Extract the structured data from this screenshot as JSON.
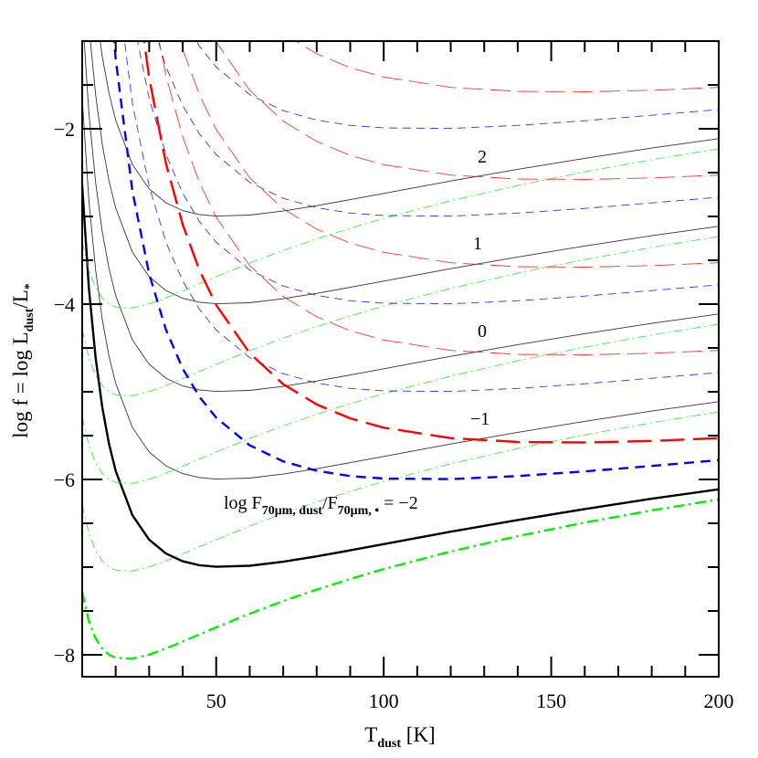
{
  "chart_data": {
    "type": "line",
    "xlabel": {
      "main": "T",
      "sub": "dust",
      "rest": " [K]"
    },
    "ylabel": {
      "main": "log f  =  log L",
      "sub1": "dust",
      "mid": "/L",
      "sub2": "*"
    },
    "xlim": [
      10,
      200
    ],
    "ylim": [
      -8.25,
      -1
    ],
    "xticks": [
      50,
      100,
      150,
      200
    ],
    "yticks": [
      -2,
      -4,
      -6,
      -8
    ],
    "x_minor_step": 10,
    "y_minor_step": 0.5,
    "grid": false,
    "annotation": {
      "prefix": "log F",
      "sub1": "70μm, dust",
      "mid": "/F",
      "sub2": "70μm, •",
      "eq": " =   −2"
    },
    "curve_labels": [
      "2",
      "1",
      "0",
      "−1"
    ],
    "families": [
      {
        "color": "#000000",
        "style": "solid",
        "T": [
          10,
          12,
          14,
          16,
          18,
          20,
          25,
          30,
          35,
          40,
          45,
          50,
          60,
          70,
          80,
          90,
          100,
          120,
          140,
          160,
          180,
          200
        ],
        "shape": [
          4.355,
          3.184,
          2.389,
          1.823,
          1.409,
          1.096,
          0.592,
          0.313,
          0.155,
          0.067,
          0.022,
          0.004,
          0.016,
          0.061,
          0.123,
          0.192,
          0.263,
          0.404,
          0.538,
          0.663,
          0.78,
          0.888
        ],
        "minima": [
          -3,
          -4,
          -5,
          -6,
          -7
        ],
        "thick_index": 4
      },
      {
        "color": "#00ee00",
        "style": "dash-dot",
        "T": [
          10,
          12,
          14,
          16,
          18,
          20,
          25,
          30,
          35,
          40,
          45,
          50,
          60,
          70,
          80,
          90,
          100,
          120,
          140,
          160,
          180,
          200
        ],
        "shape": [
          0.768,
          0.434,
          0.237,
          0.12,
          0.052,
          0.016,
          0.006,
          0.052,
          0.122,
          0.201,
          0.282,
          0.363,
          0.518,
          0.662,
          0.794,
          0.915,
          1.028,
          1.228,
          1.403,
          1.558,
          1.697,
          1.822
        ],
        "minima": [
          -4.05,
          -5.05,
          -6.05,
          -7.05,
          -8.05
        ],
        "thick_index": 4
      },
      {
        "color": "#0000ff",
        "style": "short-dash",
        "T": [
          16,
          18,
          20,
          25,
          30,
          35,
          40,
          45,
          50,
          60,
          70,
          80,
          90,
          100,
          120,
          140,
          160,
          180,
          200
        ],
        "shape": [
          6.773,
          5.663,
          4.794,
          3.287,
          2.342,
          1.708,
          1.264,
          0.942,
          0.705,
          0.39,
          0.206,
          0.099,
          0.039,
          0.01,
          0.004,
          0.039,
          0.092,
          0.154,
          0.22
        ],
        "minima": [
          -2,
          -3,
          -4,
          -5,
          -6
        ],
        "thick_index": 4
      },
      {
        "color": "#ff0000",
        "style": "long-dash",
        "T": [
          25,
          30,
          35,
          40,
          45,
          50,
          60,
          70,
          80,
          90,
          100,
          120,
          140,
          160,
          180,
          200
        ],
        "shape": [
          5.574,
          4.156,
          3.184,
          2.486,
          1.967,
          1.571,
          1.021,
          0.668,
          0.435,
          0.277,
          0.171,
          0.052,
          0.007,
          0.002,
          0.02,
          0.052
        ],
        "minima": [
          -1.58,
          -2.58,
          -3.58,
          -4.58,
          -5.58
        ],
        "thick_index": 4
      }
    ]
  }
}
